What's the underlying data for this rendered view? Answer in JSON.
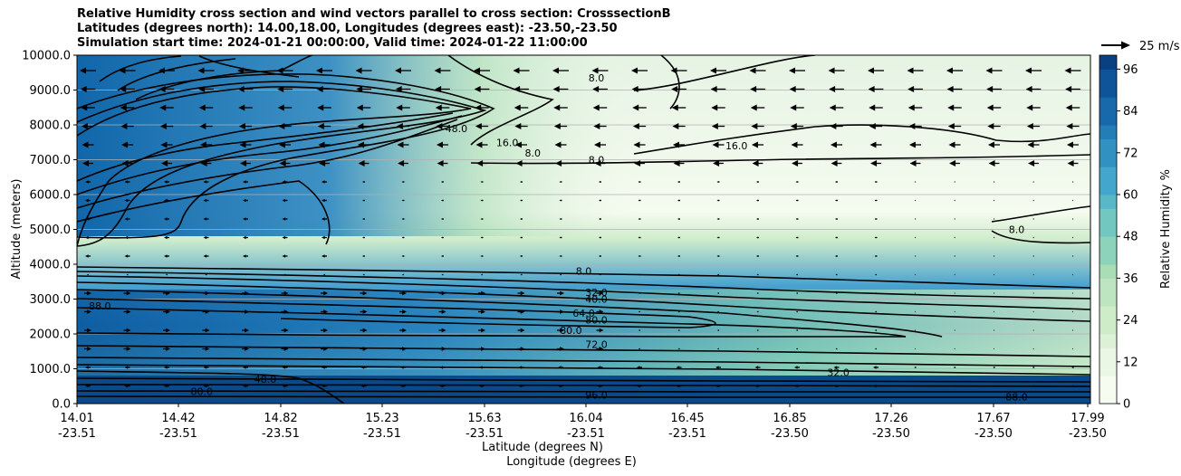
{
  "chart_data": {
    "type": "contour",
    "title": [
      "Relative Humidity cross section and wind vectors parallel to cross section: CrosssectionB",
      "Latitudes (degrees north): 14.00,18.00, Longitudes (degrees east): -23.50,-23.50",
      "Simulation start time: 2024-01-21 00:00:00, Valid time: 2024-01-22 11:00:00"
    ],
    "ylabel": "Altitude (meters)",
    "xlabel_lat": "Latitude (degrees N)",
    "xlabel_lon": "Longitude (degrees E)",
    "ylim": [
      0,
      10000
    ],
    "yticks": [
      "0.0",
      "1000.0",
      "2000.0",
      "3000.0",
      "4000.0",
      "5000.0",
      "6000.0",
      "7000.0",
      "8000.0",
      "9000.0",
      "10000.0"
    ],
    "xticks_lat": [
      "14.01",
      "14.42",
      "14.82",
      "15.23",
      "15.63",
      "16.04",
      "16.45",
      "16.85",
      "17.26",
      "17.67",
      "17.99"
    ],
    "xticks_lon": [
      "-23.51",
      "-23.51",
      "-23.51",
      "-23.51",
      "-23.51",
      "-23.51",
      "-23.51",
      "-23.50",
      "-23.50",
      "-23.50",
      "-23.50"
    ],
    "grid": "horizontal",
    "colorbar": {
      "label": "Relative Humidity %",
      "ticks": [
        "0",
        "12",
        "24",
        "36",
        "48",
        "60",
        "72",
        "84",
        "96"
      ],
      "min": 0,
      "max": 100
    },
    "quiver_key": "25 m/s",
    "contour_labels": [
      {
        "text": "8.0",
        "x": 16.05,
        "y": 9350
      },
      {
        "text": "8.0",
        "x": 16.05,
        "y": 7000
      },
      {
        "text": "16.0",
        "x": 16.6,
        "y": 7400
      },
      {
        "text": "48.0",
        "x": 15.5,
        "y": 7900
      },
      {
        "text": "16.0",
        "x": 15.7,
        "y": 7500
      },
      {
        "text": "8.0",
        "x": 15.8,
        "y": 7200
      },
      {
        "text": "8.0",
        "x": 17.7,
        "y": 5000
      },
      {
        "text": "8.0",
        "x": 16.0,
        "y": 3800
      },
      {
        "text": "32.0",
        "x": 16.05,
        "y": 3200
      },
      {
        "text": "40.0",
        "x": 16.05,
        "y": 3000
      },
      {
        "text": "64.0",
        "x": 16.0,
        "y": 2600
      },
      {
        "text": "80.0",
        "x": 16.05,
        "y": 2400
      },
      {
        "text": "80.0",
        "x": 15.95,
        "y": 2100
      },
      {
        "text": "72.0",
        "x": 16.05,
        "y": 1700
      },
      {
        "text": "88.0",
        "x": 14.1,
        "y": 2800
      },
      {
        "text": "48.0",
        "x": 14.75,
        "y": 700
      },
      {
        "text": "80.0",
        "x": 14.5,
        "y": 350
      },
      {
        "text": "96.0",
        "x": 16.05,
        "y": 250
      },
      {
        "text": "32.0",
        "x": 17.0,
        "y": 900
      },
      {
        "text": "88.0",
        "x": 17.7,
        "y": 200
      }
    ]
  }
}
